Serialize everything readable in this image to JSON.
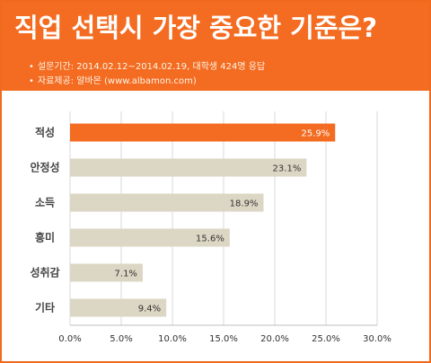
{
  "header": {
    "title": "직업 선택시 가장 중요한 기준은?",
    "survey_line": "설문기간: 2014.02.12~2014.02.19, 대학생 424명 응답",
    "source_line": "자료제공: 알바몬 (www.albamon.com)",
    "bullet": "•"
  },
  "colors": {
    "header_bg": "#f36c21",
    "highlight_bar": "#f36c21",
    "bar": "#dcd6c4",
    "grid": "#d9d9d9"
  },
  "chart_data": {
    "type": "bar",
    "orientation": "horizontal",
    "categories": [
      "적성",
      "안정성",
      "소득",
      "흥미",
      "성취감",
      "기타"
    ],
    "values": [
      25.9,
      23.1,
      18.9,
      15.6,
      7.1,
      9.4
    ],
    "value_labels": [
      "25.9%",
      "23.1%",
      "18.9%",
      "15.6%",
      "7.1%",
      "9.4%"
    ],
    "x_ticks": [
      "0.0%",
      "5.0%",
      "10.0%",
      "15.0%",
      "20.0%",
      "25.0%",
      "30.0%"
    ],
    "xlim": [
      0,
      30
    ],
    "grid": true,
    "highlight_index": 0
  }
}
